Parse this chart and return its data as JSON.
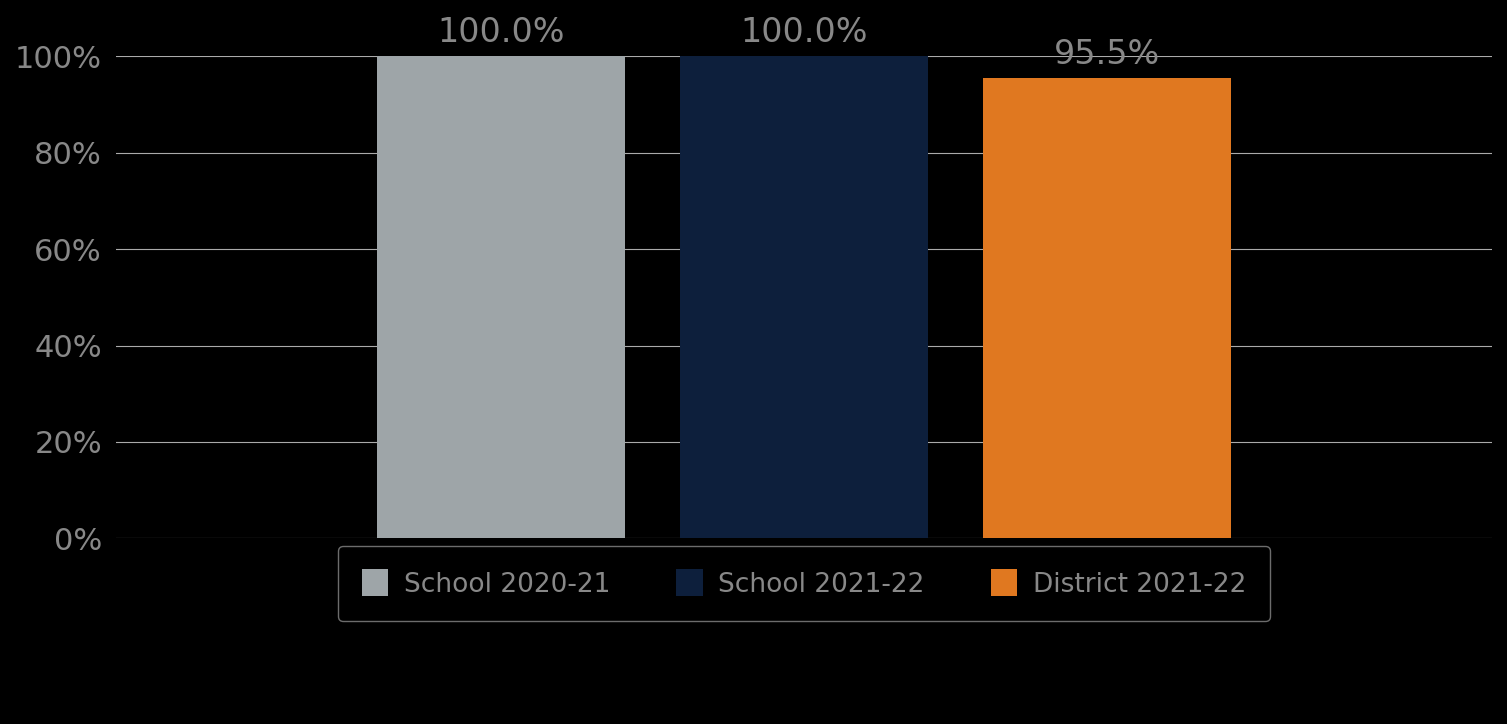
{
  "categories": [
    "School 2020-21",
    "School 2021-22",
    "District 2021-22"
  ],
  "values": [
    100.0,
    100.0,
    95.5
  ],
  "bar_colors": [
    "#9EA5A8",
    "#0D1F3C",
    "#E07820"
  ],
  "bar_labels": [
    "100.0%",
    "100.0%",
    "95.5%"
  ],
  "ylim": [
    0,
    100
  ],
  "yticks": [
    0,
    20,
    40,
    60,
    80,
    100
  ],
  "ytick_labels": [
    "0%",
    "20%",
    "40%",
    "60%",
    "80%",
    "100%"
  ],
  "background_color": "#000000",
  "text_color": "#888888",
  "grid_color": "#AAAAAA",
  "tick_fontsize": 22,
  "bar_label_fontsize": 24,
  "legend_fontsize": 19,
  "bar_width": 0.18,
  "x_positions": [
    0.28,
    0.5,
    0.72
  ],
  "xlim": [
    0.0,
    1.0
  ],
  "legend_edge_color": "#888888"
}
